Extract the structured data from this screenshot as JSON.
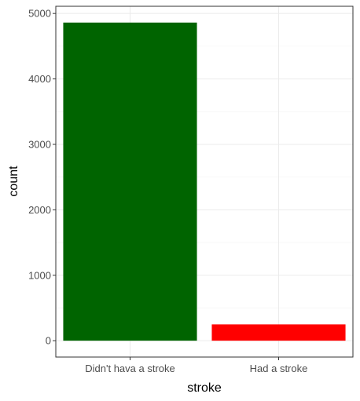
{
  "chart_data": {
    "type": "bar",
    "categories": [
      "Didn't hava a stroke",
      "Had a stroke"
    ],
    "values": [
      4861,
      249
    ],
    "colors": [
      "#006400",
      "#ff0000"
    ],
    "xlabel": "stroke",
    "ylabel": "count",
    "ylim": [
      -250,
      5110
    ],
    "yticks": [
      0,
      1000,
      2000,
      3000,
      4000,
      5000
    ],
    "grid": true,
    "legend": "none"
  }
}
